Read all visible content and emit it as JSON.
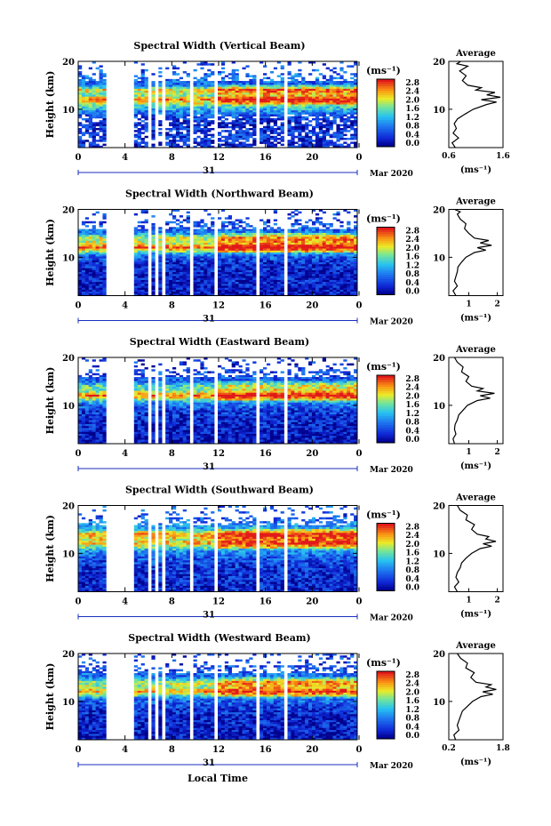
{
  "figure": {
    "x_axis_label": "Local Time",
    "day_label": "31",
    "month_label": "Mar 2020",
    "y_axis_label": "Height (km)",
    "colorbar_unit": "(ms⁻¹)",
    "colorbar_ticks": [
      "0.0",
      "0.4",
      "0.8",
      "1.2",
      "1.6",
      "2.0",
      "2.4",
      "2.8"
    ],
    "avg_title": "Average",
    "avg_unit": "(ms⁻¹)",
    "colors": {
      "low": "#1a2fbe",
      "mid": "#2db6f0",
      "high": "#e8341c",
      "bg": "#ffffff"
    }
  },
  "chart_data": [
    {
      "type": "heatmap",
      "title": "Spectral Width (Vertical Beam)",
      "x_ticks": [
        "0",
        "4",
        "8",
        "12",
        "16",
        "20",
        "0"
      ],
      "y_ticks": [
        "10",
        "20"
      ],
      "xlim": [
        0,
        24
      ],
      "ylim": [
        2,
        20
      ],
      "zlim": [
        0,
        2.8
      ],
      "data_gaps_hours": [
        [
          2.5,
          4.8
        ],
        [
          5.9,
          6.2
        ],
        [
          6.6,
          6.8
        ],
        [
          7.3,
          7.6
        ],
        [
          9.5,
          9.8
        ],
        [
          11.7,
          12.0
        ],
        [
          15.4,
          15.7
        ],
        [
          17.7,
          18.0
        ]
      ],
      "levels_by_height": [
        [
          3,
          0.3
        ],
        [
          5,
          0.5
        ],
        [
          7,
          0.3
        ],
        [
          9,
          0.7
        ],
        [
          10.5,
          1.4
        ],
        [
          12,
          2.4
        ],
        [
          13,
          1.6
        ],
        [
          14,
          2.2
        ],
        [
          15,
          0.7
        ],
        [
          17,
          0.8
        ],
        [
          18.5,
          0.6
        ],
        [
          20,
          0.5
        ]
      ],
      "average_profile": {
        "xlim": [
          0.6,
          1.6
        ],
        "x_ticks": [
          "0.6",
          "1.6"
        ],
        "y_ticks": [
          "10",
          "20"
        ],
        "height_km": [
          2,
          3,
          4,
          5,
          6,
          7,
          8,
          9,
          10,
          11,
          11.5,
          12,
          12.5,
          13,
          13.5,
          14,
          14.5,
          15,
          16,
          17,
          18,
          19,
          19.5,
          20
        ],
        "width_ms": [
          0.72,
          0.66,
          0.78,
          0.68,
          0.74,
          0.7,
          0.76,
          0.9,
          1.05,
          1.3,
          1.48,
          1.2,
          1.55,
          1.3,
          1.45,
          1.1,
          1.2,
          0.95,
          0.85,
          0.92,
          0.8,
          0.95,
          0.75,
          0.82
        ]
      }
    },
    {
      "type": "heatmap",
      "title": "Spectral Width (Northward Beam)",
      "x_ticks": [
        "0",
        "4",
        "8",
        "12",
        "16",
        "20",
        "0"
      ],
      "y_ticks": [
        "10",
        "20"
      ],
      "xlim": [
        0,
        24
      ],
      "ylim": [
        2,
        20
      ],
      "zlim": [
        0,
        2.8
      ],
      "data_gaps_hours": [
        [
          2.5,
          4.8
        ],
        [
          5.9,
          6.2
        ],
        [
          6.6,
          6.8
        ],
        [
          7.3,
          7.6
        ],
        [
          9.5,
          9.8
        ],
        [
          11.7,
          12.0
        ],
        [
          15.4,
          15.7
        ],
        [
          17.7,
          18.0
        ]
      ],
      "levels_by_height": [
        [
          3,
          0.2
        ],
        [
          5,
          0.3
        ],
        [
          7,
          0.3
        ],
        [
          9,
          0.4
        ],
        [
          10.5,
          0.8
        ],
        [
          12,
          2.6
        ],
        [
          13,
          1.8
        ],
        [
          14,
          2.0
        ],
        [
          15,
          0.9
        ],
        [
          16.5,
          0.6
        ],
        [
          18,
          0.5
        ]
      ],
      "average_profile": {
        "xlim": [
          0.3,
          2.2
        ],
        "x_ticks": [
          "1",
          "2"
        ],
        "y_ticks": [
          "10",
          "20"
        ],
        "height_km": [
          2,
          3,
          4,
          5,
          6,
          7,
          8,
          9,
          10,
          11,
          11.5,
          12,
          12.5,
          13,
          13.5,
          14,
          15,
          16,
          17,
          18,
          19,
          19.5,
          20
        ],
        "width_ms": [
          0.55,
          0.45,
          0.6,
          0.5,
          0.55,
          0.6,
          0.62,
          0.75,
          0.9,
          1.2,
          1.6,
          1.3,
          1.8,
          1.4,
          1.7,
          1.2,
          1.0,
          0.85,
          0.9,
          0.7,
          0.6,
          0.7,
          0.5
        ]
      }
    },
    {
      "type": "heatmap",
      "title": "Spectral Width (Eastward Beam)",
      "x_ticks": [
        "0",
        "4",
        "8",
        "12",
        "16",
        "20",
        "0"
      ],
      "y_ticks": [
        "10",
        "20"
      ],
      "xlim": [
        0,
        24
      ],
      "ylim": [
        2,
        20
      ],
      "zlim": [
        0,
        2.8
      ],
      "data_gaps_hours": [
        [
          2.5,
          4.8
        ],
        [
          5.9,
          6.2
        ],
        [
          6.6,
          6.8
        ],
        [
          7.3,
          7.6
        ],
        [
          9.5,
          9.8
        ],
        [
          11.7,
          12.0
        ],
        [
          15.4,
          15.7
        ],
        [
          17.7,
          18.0
        ]
      ],
      "levels_by_height": [
        [
          3,
          0.2
        ],
        [
          5,
          0.3
        ],
        [
          7,
          0.3
        ],
        [
          9,
          0.5
        ],
        [
          10.5,
          0.9
        ],
        [
          12,
          2.5
        ],
        [
          13,
          1.6
        ],
        [
          14,
          1.5
        ],
        [
          15,
          0.7
        ],
        [
          17,
          0.5
        ],
        [
          18,
          0.4
        ]
      ],
      "average_profile": {
        "xlim": [
          0.3,
          2.2
        ],
        "x_ticks": [
          "1",
          "2"
        ],
        "y_ticks": [
          "10",
          "20"
        ],
        "height_km": [
          2,
          3,
          4,
          5,
          6,
          7,
          8,
          9,
          10,
          11,
          11.5,
          12,
          12.5,
          13,
          13.5,
          14,
          15,
          16,
          17,
          18,
          19,
          20
        ],
        "width_ms": [
          0.5,
          0.45,
          0.55,
          0.5,
          0.52,
          0.6,
          0.65,
          0.8,
          0.95,
          1.3,
          1.75,
          1.4,
          1.9,
          1.3,
          1.5,
          1.1,
          0.9,
          1.0,
          0.75,
          0.8,
          0.6,
          0.5
        ]
      }
    },
    {
      "type": "heatmap",
      "title": "Spectral Width (Southward Beam)",
      "x_ticks": [
        "0",
        "4",
        "8",
        "12",
        "16",
        "20",
        "0"
      ],
      "y_ticks": [
        "10",
        "20"
      ],
      "xlim": [
        0,
        24
      ],
      "ylim": [
        2,
        20
      ],
      "zlim": [
        0,
        2.8
      ],
      "data_gaps_hours": [
        [
          2.5,
          4.8
        ],
        [
          5.9,
          6.2
        ],
        [
          6.6,
          6.8
        ],
        [
          7.3,
          7.6
        ],
        [
          9.5,
          9.8
        ],
        [
          11.7,
          12.0
        ],
        [
          15.4,
          15.7
        ],
        [
          17.7,
          18.0
        ]
      ],
      "levels_by_height": [
        [
          3,
          0.3
        ],
        [
          5,
          0.4
        ],
        [
          7,
          0.4
        ],
        [
          9,
          0.6
        ],
        [
          10.5,
          1.0
        ],
        [
          12,
          2.2
        ],
        [
          13,
          2.0
        ],
        [
          14,
          2.4
        ],
        [
          15,
          1.2
        ],
        [
          16.5,
          0.8
        ],
        [
          18,
          0.6
        ]
      ],
      "average_profile": {
        "xlim": [
          0.3,
          2.2
        ],
        "x_ticks": [
          "1",
          "2"
        ],
        "y_ticks": [
          "10",
          "20"
        ],
        "height_km": [
          2,
          3,
          4,
          5,
          6,
          7,
          8,
          9,
          10,
          11,
          11.5,
          12,
          12.5,
          13,
          13.5,
          14,
          15,
          16,
          17,
          18,
          19,
          20
        ],
        "width_ms": [
          0.6,
          0.5,
          0.65,
          0.55,
          0.6,
          0.7,
          0.75,
          0.9,
          1.1,
          1.4,
          1.8,
          1.5,
          1.95,
          1.6,
          1.7,
          1.3,
          1.1,
          1.2,
          0.9,
          0.95,
          0.7,
          0.6
        ]
      }
    },
    {
      "type": "heatmap",
      "title": "Spectral Width (Westward Beam)",
      "x_ticks": [
        "0",
        "4",
        "8",
        "12",
        "16",
        "20",
        "0"
      ],
      "y_ticks": [
        "10",
        "20"
      ],
      "xlim": [
        0,
        24
      ],
      "ylim": [
        2,
        20
      ],
      "zlim": [
        0,
        2.8
      ],
      "data_gaps_hours": [
        [
          2.5,
          4.8
        ],
        [
          5.9,
          6.2
        ],
        [
          6.6,
          6.8
        ],
        [
          7.3,
          7.6
        ],
        [
          9.5,
          9.8
        ],
        [
          11.7,
          12.0
        ],
        [
          15.4,
          15.7
        ],
        [
          17.7,
          18.0
        ]
      ],
      "levels_by_height": [
        [
          3,
          0.2
        ],
        [
          5,
          0.3
        ],
        [
          7,
          0.3
        ],
        [
          9,
          0.5
        ],
        [
          10.5,
          0.8
        ],
        [
          12,
          2.3
        ],
        [
          13,
          1.7
        ],
        [
          14,
          1.9
        ],
        [
          15,
          0.8
        ],
        [
          17,
          0.6
        ],
        [
          18,
          0.5
        ]
      ],
      "average_profile": {
        "xlim": [
          0.2,
          1.8
        ],
        "x_ticks": [
          "0.2",
          "1.8"
        ],
        "y_ticks": [
          "10",
          "20"
        ],
        "height_km": [
          2,
          3,
          4,
          5,
          6,
          7,
          8,
          9,
          10,
          11,
          11.5,
          12,
          12.5,
          13,
          13.5,
          14,
          15,
          16,
          17,
          18,
          19,
          20
        ],
        "width_ms": [
          0.4,
          0.35,
          0.5,
          0.45,
          0.5,
          0.55,
          0.6,
          0.75,
          0.9,
          1.15,
          1.5,
          1.2,
          1.6,
          1.3,
          1.45,
          1.0,
          0.85,
          0.95,
          0.7,
          0.75,
          0.55,
          0.45
        ]
      }
    }
  ]
}
